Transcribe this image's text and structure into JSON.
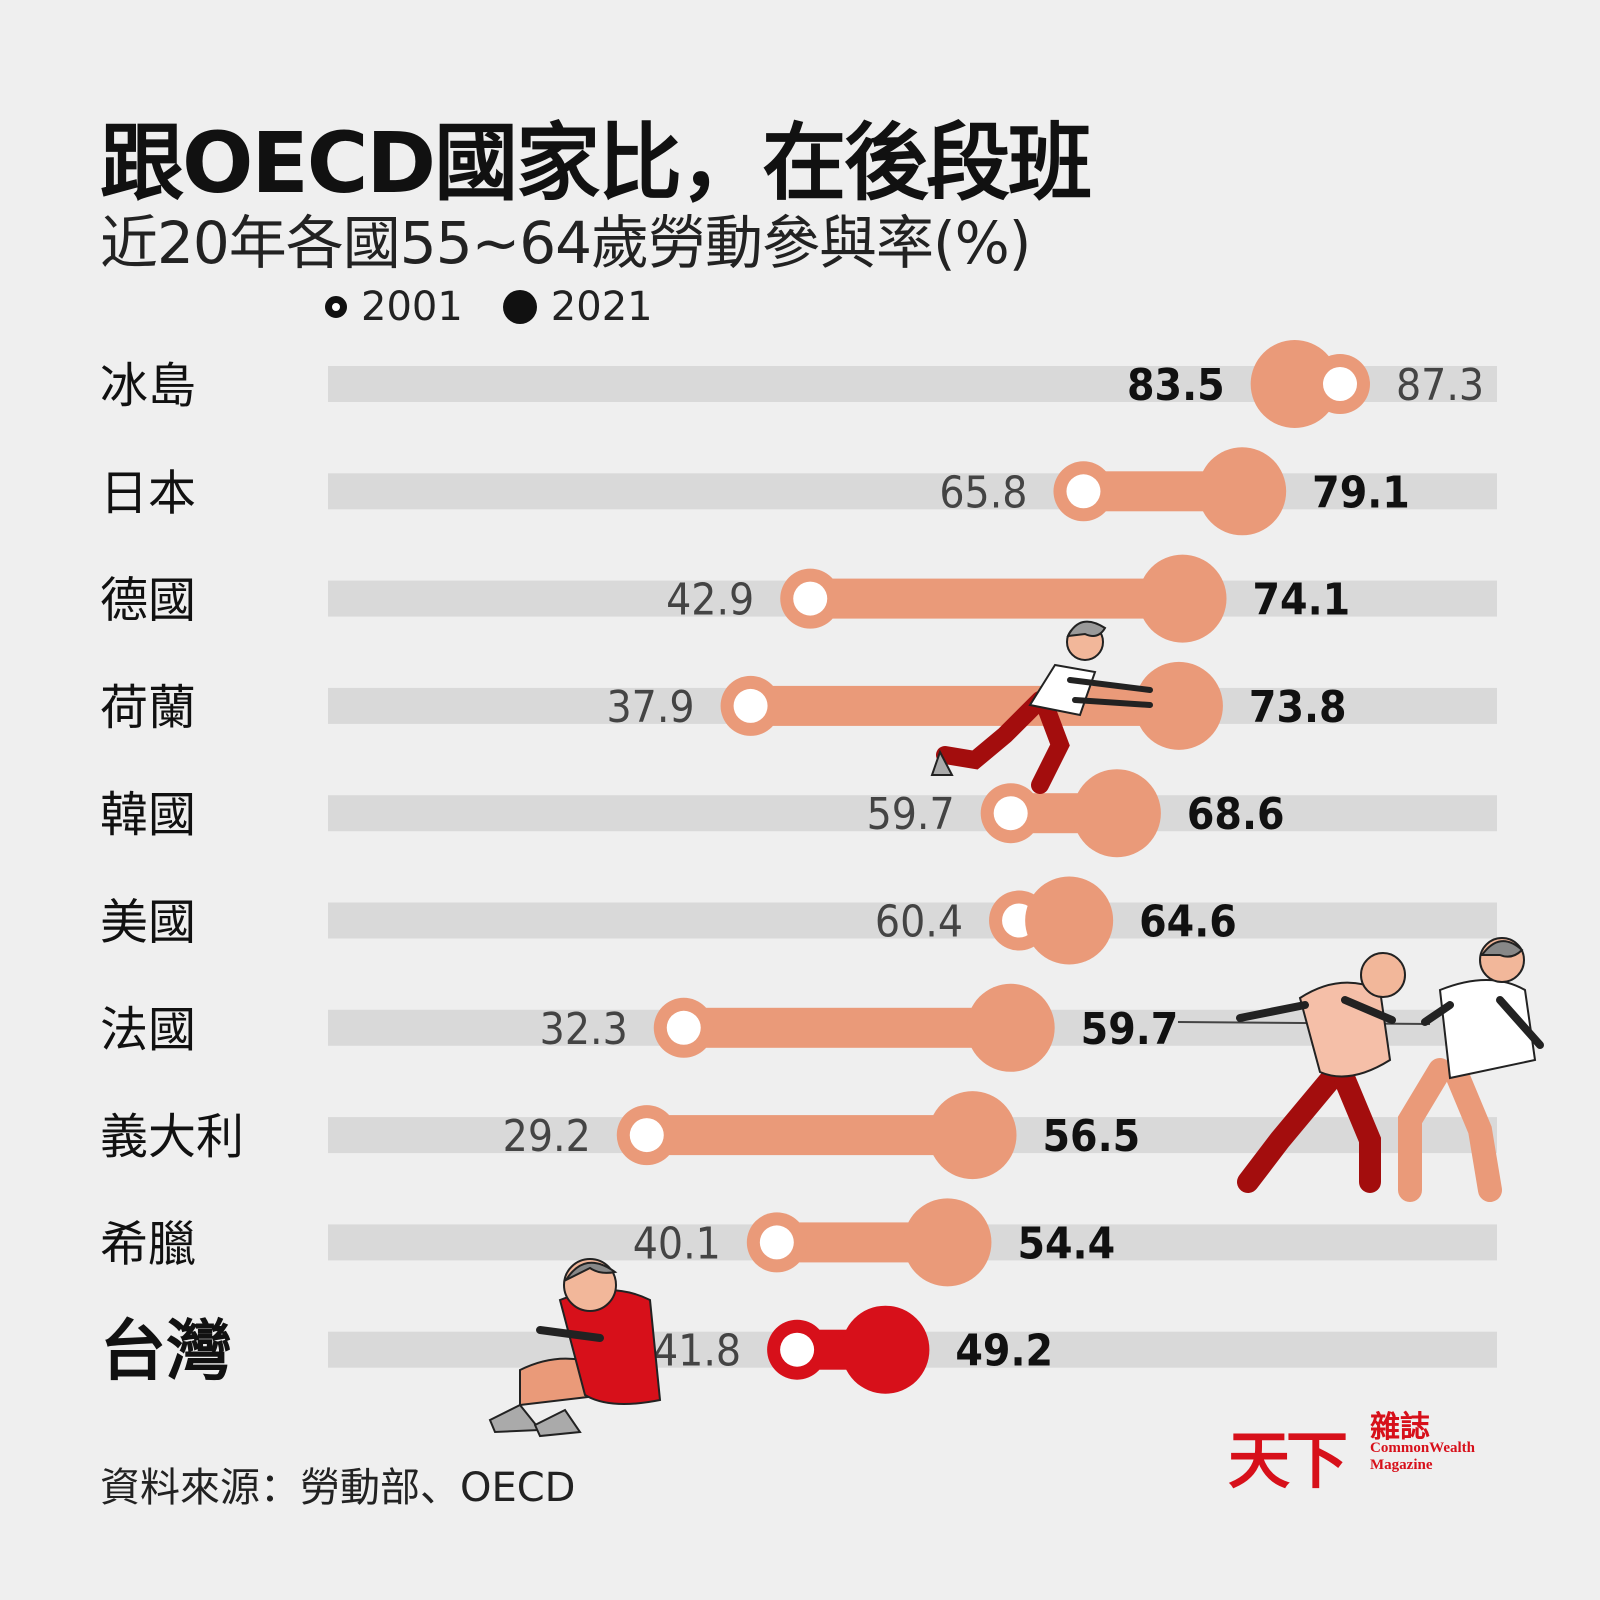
{
  "header": {
    "title": "跟OECD國家比，在後段班",
    "subtitle": "近20年各國55~64歲勞動參與率(%)"
  },
  "legend": {
    "open_label": "2001",
    "filled_label": "2021"
  },
  "chart_data": {
    "type": "dumbbell",
    "categories": [
      "冰島",
      "日本",
      "德國",
      "荷蘭",
      "韓國",
      "美國",
      "法國",
      "義大利",
      "希臘",
      "台灣"
    ],
    "highlight": "台灣",
    "series": [
      {
        "name": "2001",
        "marker": "open-circle",
        "values": [
          87.3,
          65.8,
          42.9,
          37.9,
          59.7,
          60.4,
          32.3,
          29.2,
          40.1,
          41.8
        ]
      },
      {
        "name": "2021",
        "marker": "filled-circle",
        "values": [
          83.5,
          79.1,
          74.1,
          73.8,
          68.6,
          64.6,
          59.7,
          56.5,
          54.4,
          49.2
        ]
      }
    ],
    "xlim": [
      0,
      100
    ],
    "grid": false
  },
  "colors": {
    "background": "#efefef",
    "track": "#d9d9d9",
    "accent": "#ea9a79",
    "highlight": "#d7101a",
    "text": "#111111"
  },
  "footer": {
    "source": "資料來源：勞動部、OECD"
  },
  "logo": {
    "name_cn": "天下",
    "subname_cn": "雜誌",
    "name_en_1": "CommonWealth",
    "name_en_2": "Magazine"
  },
  "illustrations": [
    "elderly-woman-pushing",
    "two-men-tug-of-war",
    "sad-sitting-man"
  ]
}
